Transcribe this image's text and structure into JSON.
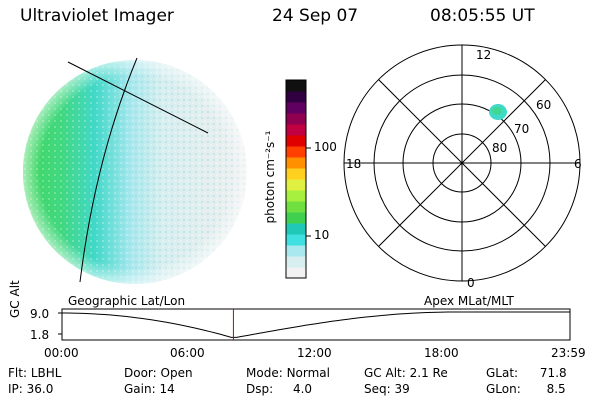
{
  "header": {
    "title": "Ultraviolet Imager",
    "date": "24 Sep 07",
    "time": "08:05:55 UT"
  },
  "colorbar": {
    "unit_label": "photon cm⁻²s⁻¹",
    "ticks": [
      "100",
      "10"
    ],
    "colors": [
      "#f2f2f2",
      "#d8eef0",
      "#a8e8ee",
      "#40e0e0",
      "#20c8b8",
      "#40d050",
      "#70e040",
      "#a8f040",
      "#e0f040",
      "#ffd020",
      "#ff9000",
      "#ff4000",
      "#e00000",
      "#c00040",
      "#900050",
      "#600060",
      "#300040",
      "#101010"
    ]
  },
  "geo_panel": {
    "label": "Geographic Lat/Lon"
  },
  "polar_panel": {
    "label": "Apex  MLat/MLT",
    "mlt_labels": {
      "top": "12",
      "left": "18",
      "right": "6",
      "bottom": "0"
    },
    "lat_labels": [
      "60",
      "70",
      "80"
    ]
  },
  "altitude_plot": {
    "ylabel": "GC Alt",
    "yticks": [
      "9.0",
      "1.8"
    ],
    "xticks": [
      "00:00",
      "06:00",
      "12:00",
      "18:00",
      "23:59"
    ],
    "marker_time": "08:05:55",
    "marker_color": "#cc0000"
  },
  "status": {
    "row1": [
      {
        "key": "Flt:",
        "value": "LBHL"
      },
      {
        "key": "Door:",
        "value": "Open"
      },
      {
        "key": "Mode:",
        "value": "Normal"
      },
      {
        "key": "GC Alt:",
        "value": "2.1 Re"
      },
      {
        "key": "GLat:",
        "value": "71.8"
      }
    ],
    "row2": [
      {
        "key": "IP:",
        "value": "36.0"
      },
      {
        "key": "Gain:",
        "value": "14"
      },
      {
        "key": "Dsp:",
        "value": "4.0"
      },
      {
        "key": "Seq:",
        "value": "39"
      },
      {
        "key": "GLon:",
        "value": "8.5"
      }
    ]
  }
}
